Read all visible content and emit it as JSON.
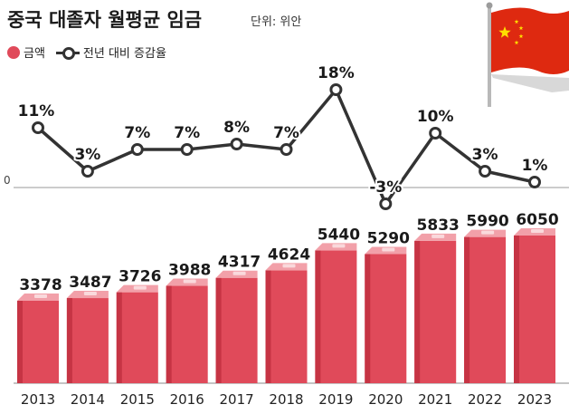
{
  "header": {
    "title": "중국 대졸자 월평균 임금",
    "unit": "단위: 위안"
  },
  "legend": {
    "amount": "금액",
    "growth": "전년 대비 증감율"
  },
  "chart_data": {
    "type": "bar+line",
    "categories": [
      "2013",
      "2014",
      "2015",
      "2016",
      "2017",
      "2018",
      "2019",
      "2020",
      "2021",
      "2022",
      "2023"
    ],
    "series": [
      {
        "name": "금액",
        "type": "bar",
        "unit": "위안",
        "values": [
          3378,
          3487,
          3726,
          3988,
          4317,
          4624,
          5440,
          5290,
          5833,
          5990,
          6050
        ]
      },
      {
        "name": "전년 대비 증감율",
        "type": "line",
        "unit": "%",
        "values": [
          11,
          3,
          7,
          7,
          8,
          7,
          18,
          -3,
          10,
          3,
          1
        ],
        "labels": [
          "11%",
          "3%",
          "7%",
          "7%",
          "8%",
          "7%",
          "18%",
          "-3%",
          "10%",
          "3%",
          "1%"
        ]
      }
    ],
    "zero_label": "0",
    "colors": {
      "bar": "#e04a5a",
      "bar_dark": "#c63444",
      "bar_top": "#f2a0a9",
      "line": "#333333",
      "flag_red": "#de2910",
      "flag_star": "#ffde00"
    }
  }
}
